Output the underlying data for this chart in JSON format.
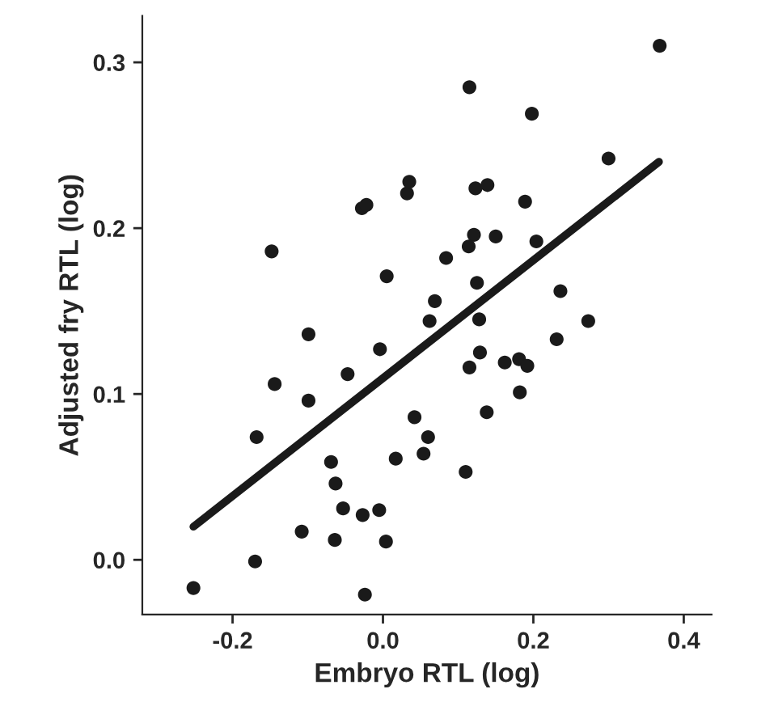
{
  "chart_data": {
    "type": "scatter",
    "xlabel": "Embryo RTL (log)",
    "ylabel": "Adjusted fry RTL (log)",
    "xlim": [
      -0.32,
      0.437
    ],
    "ylim": [
      -0.033,
      0.328
    ],
    "xticks": [
      -0.2,
      {
        "value": 0,
        "label": "0.0"
      },
      0.2,
      0.4
    ],
    "yticks": [
      {
        "value": 0,
        "label": "0.0"
      },
      0.1,
      0.2,
      0.3
    ],
    "grid": false,
    "legend": false,
    "marker": "circle",
    "series": [
      {
        "color": "#1a1a1a",
        "x": [
          -0.148,
          -0.028,
          -0.022,
          0.032,
          0.035,
          0.005,
          0.084,
          0.069,
          0.368,
          0.115,
          0.198,
          0.3,
          0.123,
          0.139,
          0.189,
          0.121,
          0.114,
          0.15,
          0.204,
          0.125,
          0.236,
          0.062,
          0.128,
          0.273,
          -0.099,
          -0.004,
          -0.144,
          -0.047,
          -0.099,
          0.042,
          -0.168,
          0.06,
          0.054,
          0.017,
          -0.069,
          -0.063,
          -0.053,
          -0.027,
          -0.005,
          -0.108,
          -0.064,
          0.004,
          -0.17,
          -0.252,
          -0.024,
          0.231,
          0.129,
          0.115,
          0.162,
          0.181,
          0.192,
          0.182,
          0.138,
          0.11
        ],
        "values": [
          0.186,
          0.212,
          0.214,
          0.221,
          0.228,
          0.171,
          0.182,
          0.156,
          0.31,
          0.285,
          0.269,
          0.242,
          0.224,
          0.226,
          0.216,
          0.196,
          0.189,
          0.195,
          0.192,
          0.167,
          0.162,
          0.144,
          0.145,
          0.144,
          0.136,
          0.127,
          0.106,
          0.112,
          0.096,
          0.086,
          0.074,
          0.074,
          0.064,
          0.061,
          0.059,
          0.046,
          0.031,
          0.027,
          0.03,
          0.017,
          0.012,
          0.011,
          -0.001,
          -0.017,
          -0.021,
          0.133,
          0.125,
          0.116,
          0.119,
          0.121,
          0.117,
          0.101,
          0.089,
          0.053
        ]
      },
      {
        "type": "line",
        "color": "#1a1a1a",
        "marker": "none",
        "line_style": "solid",
        "x": [
          -0.252,
          0.367
        ],
        "values": [
          0.02,
          0.24
        ]
      }
    ]
  }
}
